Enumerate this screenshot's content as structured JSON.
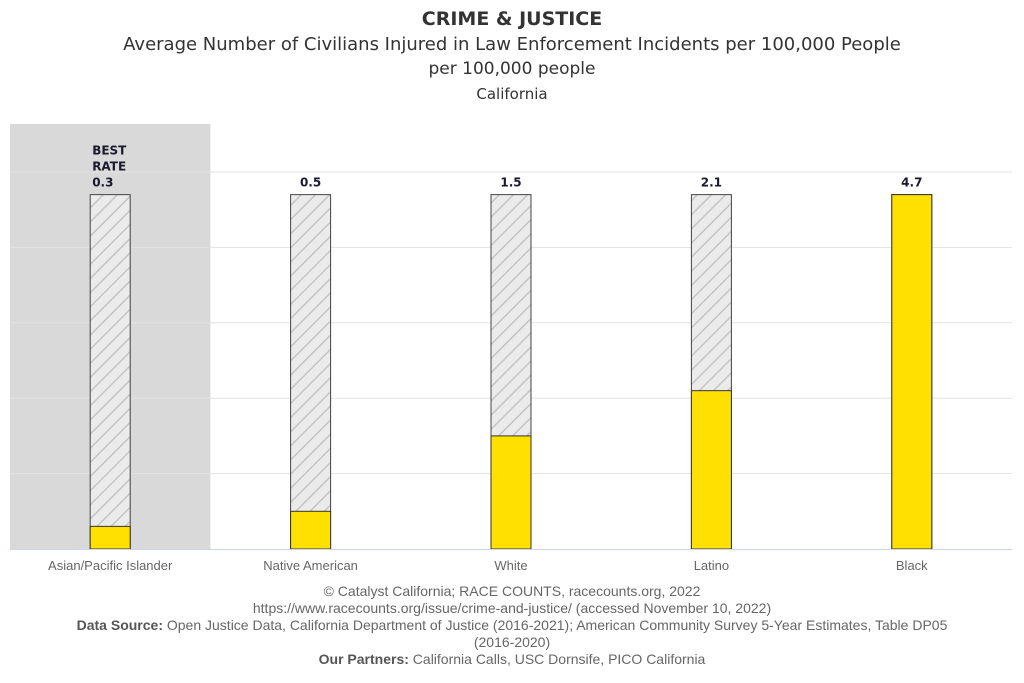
{
  "header": {
    "title": "CRIME & JUSTICE",
    "subtitle": "Average Number of Civilians Injured in Law Enforcement Incidents per 100,000 People",
    "unit": "per 100,000 people",
    "geography": "California"
  },
  "chart_data": {
    "type": "bar",
    "categories": [
      "Asian/Pacific Islander",
      "Native American",
      "White",
      "Latino",
      "Black"
    ],
    "values": [
      0.3,
      0.5,
      1.5,
      2.1,
      4.7
    ],
    "data_labels": [
      "0.3",
      "0.5",
      "1.5",
      "2.1",
      "4.7"
    ],
    "best_label": [
      "BEST",
      "RATE"
    ],
    "best_category": "Asian/Pacific Islander",
    "ylim": [
      0,
      5
    ],
    "grid": true,
    "colors": {
      "bar": "#FFE000",
      "hatch_background": "#e6e6e6",
      "highlight": "#d9d9d9"
    }
  },
  "footer": {
    "copyright": "© Catalyst California; RACE COUNTS, racecounts.org, 2022",
    "url": "https://www.racecounts.org/issue/crime-and-justice/ (accessed November 10, 2022)",
    "source_label": "Data Source:",
    "source_text": "Open Justice Data, California Department of Justice (2016-2021); American Community Survey 5-Year Estimates, Table DP05 (2016-2020)",
    "partners_label": "Our Partners:",
    "partners_text": "California Calls, USC Dornsife, PICO California"
  }
}
